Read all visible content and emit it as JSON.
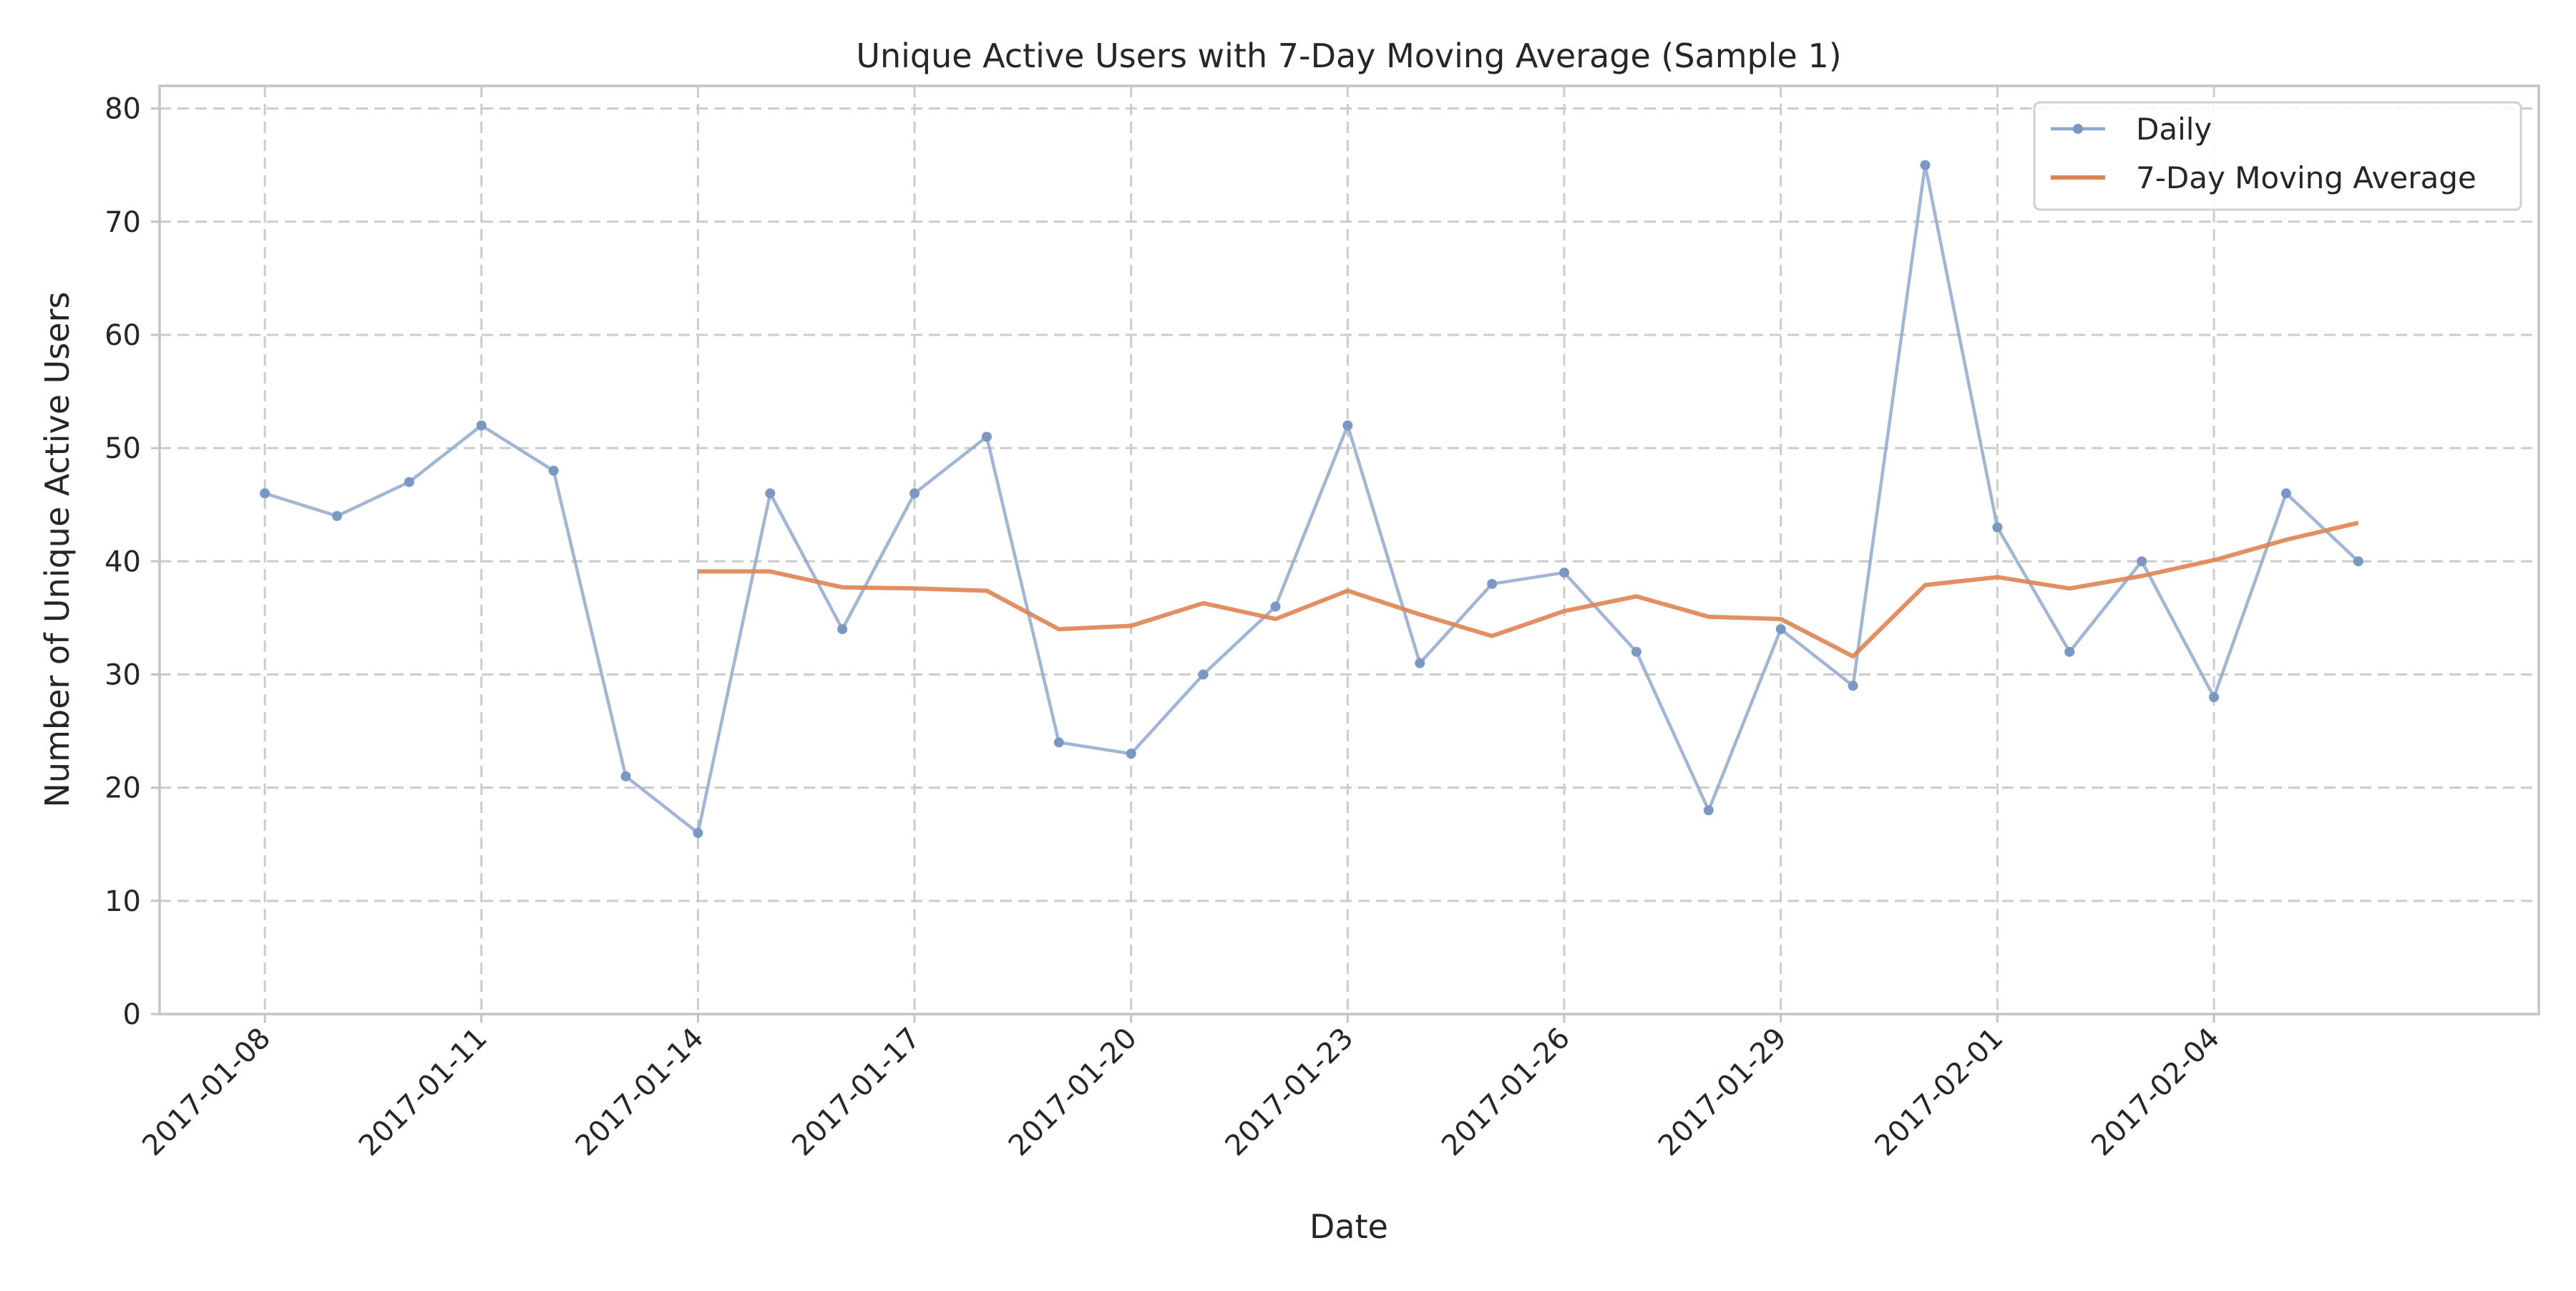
{
  "chart_data": {
    "type": "line",
    "title": "Unique Active Users with 7-Day Moving Average (Sample 1)",
    "xlabel": "Date",
    "ylabel": "Number of Unique Active Users",
    "ylim": [
      0,
      82
    ],
    "yticks": [
      0,
      10,
      20,
      30,
      40,
      50,
      60,
      70,
      80
    ],
    "xlim": [
      "2017-01-06T13:00",
      "2017-02-08T12:00"
    ],
    "xticks": [
      "2017-01-08",
      "2017-01-11",
      "2017-01-14",
      "2017-01-17",
      "2017-01-20",
      "2017-01-23",
      "2017-01-26",
      "2017-01-29",
      "2017-02-01",
      "2017-02-04"
    ],
    "grid": true,
    "legend_position": "top-right",
    "x": [
      "2017-01-08",
      "2017-01-09",
      "2017-01-10",
      "2017-01-11",
      "2017-01-12",
      "2017-01-13",
      "2017-01-14",
      "2017-01-15",
      "2017-01-16",
      "2017-01-17",
      "2017-01-18",
      "2017-01-19",
      "2017-01-20",
      "2017-01-21",
      "2017-01-22",
      "2017-01-23",
      "2017-01-24",
      "2017-01-25",
      "2017-01-26",
      "2017-01-27",
      "2017-01-28",
      "2017-01-29",
      "2017-01-30",
      "2017-01-31",
      "2017-02-01",
      "2017-02-02",
      "2017-02-03",
      "2017-02-04",
      "2017-02-05",
      "2017-02-06"
    ],
    "series": [
      {
        "name": "Daily",
        "color": "#8fa9cc",
        "marker": "circle",
        "values": [
          46,
          44,
          47,
          52,
          48,
          21,
          16,
          46,
          34,
          46,
          51,
          24,
          23,
          30,
          36,
          52,
          31,
          38,
          39,
          32,
          18,
          34,
          29,
          75,
          43,
          32,
          40,
          28,
          46,
          40
        ]
      },
      {
        "name": "7-Day Moving Average",
        "color": "#dd8452",
        "marker": "none",
        "values": [
          null,
          null,
          null,
          null,
          null,
          null,
          39.1,
          39.1,
          37.7,
          37.6,
          37.4,
          34.0,
          34.3,
          36.3,
          34.9,
          37.4,
          35.3,
          33.4,
          35.6,
          36.9,
          35.1,
          34.9,
          31.6,
          37.9,
          38.6,
          37.6,
          38.7,
          40.1,
          41.9,
          43.4
        ]
      }
    ]
  }
}
